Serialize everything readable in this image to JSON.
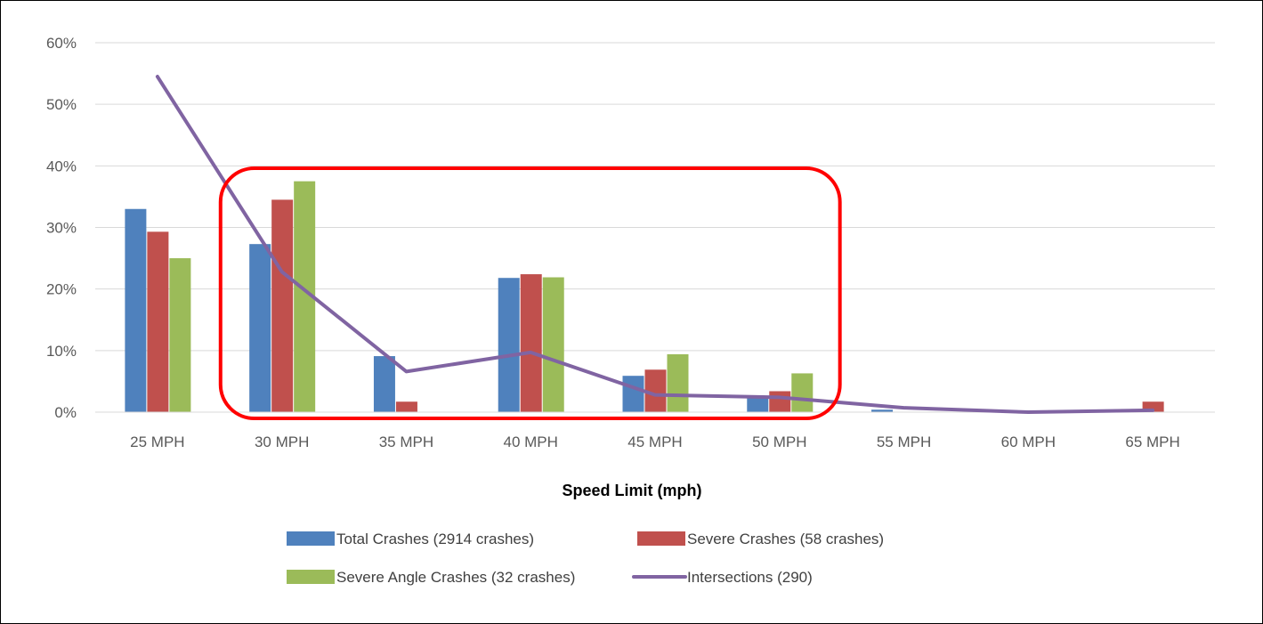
{
  "chart_data": {
    "type": "bar",
    "categories": [
      "25 MPH",
      "30 MPH",
      "35 MPH",
      "40 MPH",
      "45 MPH",
      "50 MPH",
      "55 MPH",
      "60 MPH",
      "65 MPH"
    ],
    "xlabel": "Speed Limit (mph)",
    "ylabel": "",
    "ylim": [
      0,
      60
    ],
    "y_ticks": [
      "0%",
      "10%",
      "20%",
      "30%",
      "40%",
      "50%",
      "60%"
    ],
    "y_tick_values": [
      0,
      10,
      20,
      30,
      40,
      50,
      60
    ],
    "grid": true,
    "legend_placement": "bottom",
    "series": [
      {
        "name": "Total Crashes (2914 crashes)",
        "type": "bar",
        "color": "#4F81BD",
        "values": [
          33.0,
          27.3,
          9.1,
          21.8,
          5.9,
          2.6,
          0.4,
          0.0,
          0.0
        ]
      },
      {
        "name": "Severe Crashes (58 crashes)",
        "type": "bar",
        "color": "#C0504D",
        "values": [
          29.3,
          34.5,
          1.7,
          22.4,
          6.9,
          3.4,
          0.0,
          0.0,
          1.7
        ]
      },
      {
        "name": "Severe Angle Crashes (32 crashes)",
        "type": "bar",
        "color": "#9BBB59",
        "values": [
          25.0,
          37.5,
          0.0,
          21.9,
          9.4,
          6.3,
          0.0,
          0.0,
          0.0
        ]
      },
      {
        "name": "Intersections (290)",
        "type": "line",
        "color": "#8064A2",
        "values": [
          54.5,
          22.8,
          6.6,
          9.7,
          2.8,
          2.4,
          0.7,
          0.0,
          0.3
        ]
      }
    ],
    "annotation": {
      "shape": "rounded-rectangle",
      "color": "#FF0000",
      "encloses_categories": [
        "30 MPH",
        "35 MPH",
        "40 MPH",
        "45 MPH",
        "50 MPH"
      ]
    }
  }
}
